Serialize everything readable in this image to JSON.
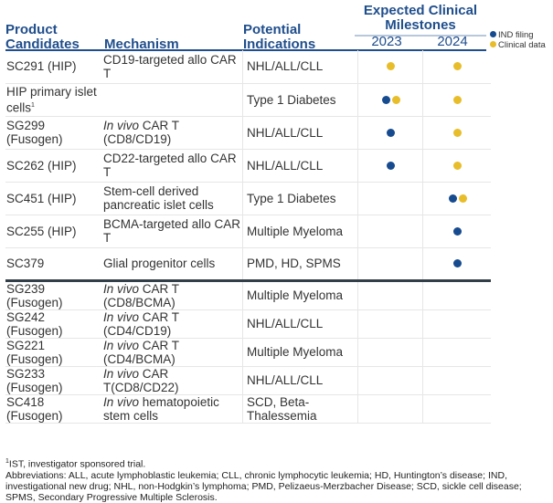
{
  "header": {
    "product": "Product Candidates",
    "mechanism": "Mechanism",
    "indications": "Potential Indications",
    "milestones": "Expected Clinical Milestones",
    "years": [
      "2023",
      "2024"
    ]
  },
  "legend": {
    "ind": "IND filing",
    "clinical": "Clinical data"
  },
  "colors": {
    "header": "#1f4e8c",
    "ind": "#174b8f",
    "clinical": "#e8bd2a",
    "divider": "#333f48"
  },
  "rows": [
    {
      "product": "SC291 (HIP)",
      "mechanism": "CD19-targeted allo CAR T",
      "mech_italic": "",
      "indication": "NHL/ALL/CLL",
      "m2023": [
        "clinical"
      ],
      "m2024": [
        "clinical"
      ]
    },
    {
      "product": "HIP primary islet cells",
      "sup": "1",
      "mechanism": "",
      "mech_italic": "",
      "indication": "Type 1 Diabetes",
      "m2023": [
        "ind",
        "clinical"
      ],
      "m2024": [
        "clinical"
      ]
    },
    {
      "product": "SG299 (Fusogen)",
      "mech_italic": "In vivo",
      "mechanism": " CAR T (CD8/CD19)",
      "indication": "NHL/ALL/CLL",
      "m2023": [
        "ind"
      ],
      "m2024": [
        "clinical"
      ]
    },
    {
      "product": "SC262 (HIP)",
      "mechanism": "CD22-targeted allo CAR T",
      "mech_italic": "",
      "indication": "NHL/ALL/CLL",
      "m2023": [
        "ind"
      ],
      "m2024": [
        "clinical"
      ]
    },
    {
      "product": "SC451 (HIP)",
      "mechanism": "Stem-cell derived pancreatic islet cells",
      "mech_italic": "",
      "indication": "Type 1 Diabetes",
      "m2023": [],
      "m2024": [
        "ind",
        "clinical"
      ]
    },
    {
      "product": "SC255 (HIP)",
      "mechanism": "BCMA-targeted allo CAR T",
      "mech_italic": "",
      "indication": "Multiple Myeloma",
      "m2023": [],
      "m2024": [
        "ind"
      ]
    },
    {
      "product": "SC379",
      "mechanism": "Glial progenitor cells",
      "mech_italic": "",
      "indication": "PMD, HD, SPMS",
      "m2023": [],
      "m2024": [
        "ind"
      ]
    },
    {
      "product": "SG239 (Fusogen)",
      "mech_italic": "In vivo",
      "mechanism": " CAR T (CD8/BCMA)",
      "indication": "Multiple Myeloma",
      "m2023": [],
      "m2024": []
    },
    {
      "product": "SG242 (Fusogen)",
      "mech_italic": "In vivo",
      "mechanism": " CAR T (CD4/CD19)",
      "indication": "NHL/ALL/CLL",
      "m2023": [],
      "m2024": []
    },
    {
      "product": "SG221 (Fusogen)",
      "mech_italic": "In vivo",
      "mechanism": " CAR T (CD4/BCMA)",
      "indication": "Multiple Myeloma",
      "m2023": [],
      "m2024": []
    },
    {
      "product": "SG233 (Fusogen)",
      "mech_italic": "In vivo",
      "mechanism": " CAR T(CD8/CD22)",
      "indication": "NHL/ALL/CLL",
      "m2023": [],
      "m2024": []
    },
    {
      "product": "SC418 (Fusogen)",
      "mech_italic": "In vivo",
      "mechanism": " hematopoietic stem cells",
      "indication": "SCD, Beta-Thalessemia",
      "m2023": [],
      "m2024": []
    }
  ],
  "footnotes": {
    "sup": "1",
    "ist": "IST, investigator sponsored trial.",
    "abbrev": "Abbreviations: ALL, acute lymphoblastic leukemia; CLL, chronic lymphocytic leukemia; HD, Huntington’s disease; IND, investigational new drug; NHL, non-Hodgkin’s lymphoma; PMD, Pelizaeus-Merzbacher Disease; SCD, sickle cell disease; SPMS, Secondary Progressive Multiple Sclerosis."
  }
}
